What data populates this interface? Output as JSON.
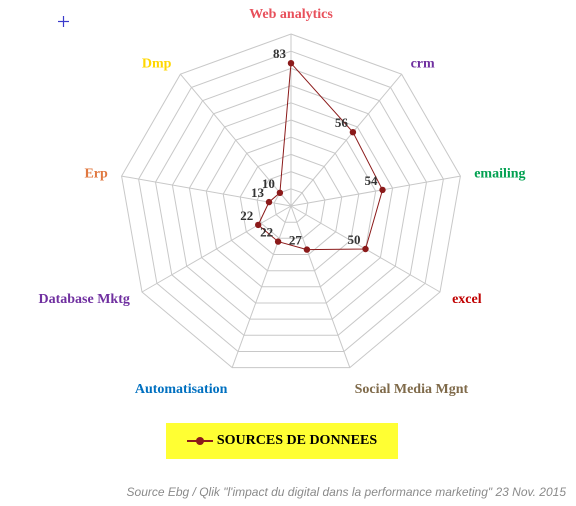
{
  "chart_data": {
    "type": "radar",
    "title": "",
    "axes": [
      {
        "label": "Web analytics",
        "color": "#e8505b"
      },
      {
        "label": "crm",
        "color": "#7030a0"
      },
      {
        "label": "emailing",
        "color": "#00a050"
      },
      {
        "label": "excel",
        "color": "#c00000"
      },
      {
        "label": "Social Media Mgnt",
        "color": "#7f6a4a"
      },
      {
        "label": "Automatisation",
        "color": "#0070c0"
      },
      {
        "label": "Database Mktg",
        "color": "#7030a0"
      },
      {
        "label": "Erp",
        "color": "#e07840"
      },
      {
        "label": "Dmp",
        "color": "#ffd700"
      }
    ],
    "series": [
      {
        "name": "SOURCES DE DONNEES",
        "color": "#8b1a1a",
        "values": [
          83,
          56,
          54,
          50,
          27,
          22,
          22,
          13,
          10
        ]
      }
    ],
    "range": [
      0,
      100
    ],
    "grid_levels": 10,
    "legend_position": "bottom"
  },
  "legend": {
    "label": "SOURCES DE DONNEES"
  },
  "source": "Source Ebg / Qlik \"l'impact du digital dans la performance marketing\" 23 Nov. 2015"
}
